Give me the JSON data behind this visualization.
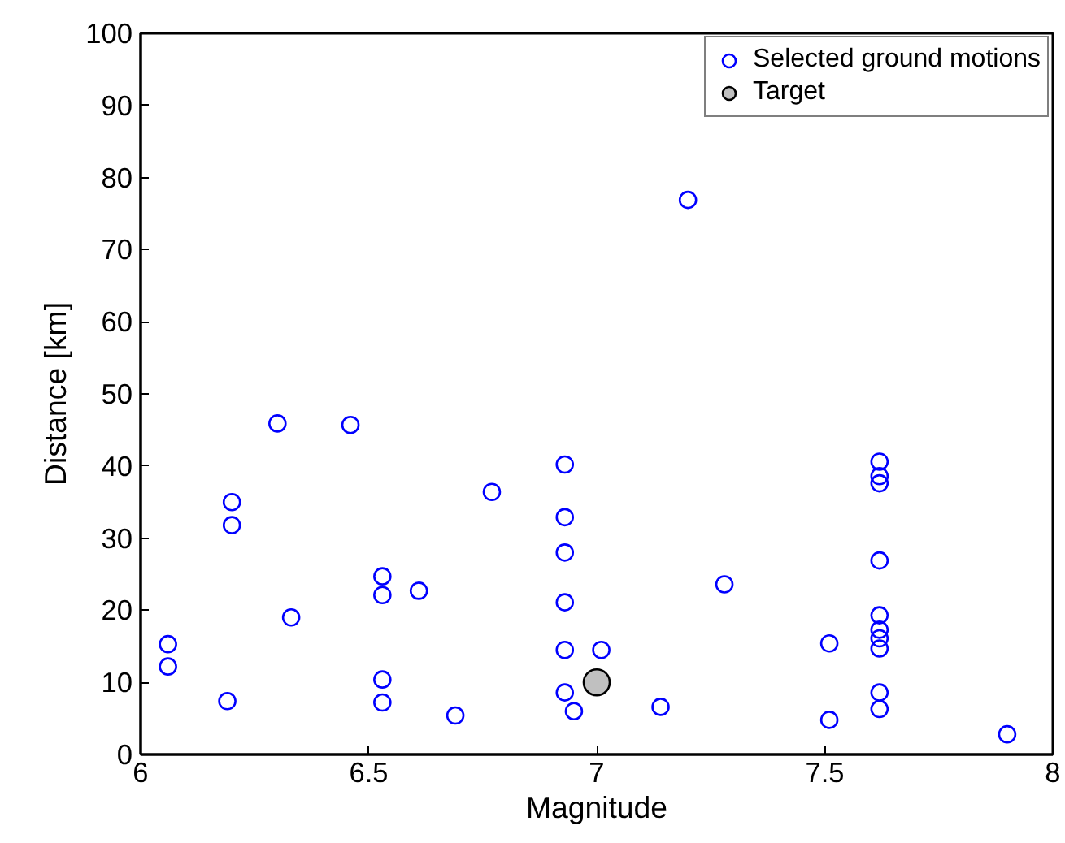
{
  "chart_data": {
    "type": "scatter",
    "xlabel": "Magnitude",
    "ylabel": "Distance [km]",
    "xlim": [
      6,
      8
    ],
    "ylim": [
      0,
      100
    ],
    "xticks": [
      6,
      6.5,
      7,
      7.5,
      8
    ],
    "yticks": [
      0,
      10,
      20,
      30,
      40,
      50,
      60,
      70,
      80,
      90,
      100
    ],
    "grid": false,
    "legend": "top right",
    "marker": "circle",
    "series": [
      {
        "name": "Selected ground motions",
        "color": "#0000ff",
        "x": [
          6.06,
          6.06,
          6.19,
          6.2,
          6.2,
          6.3,
          6.33,
          6.46,
          6.53,
          6.53,
          6.53,
          6.53,
          6.61,
          6.69,
          6.77,
          6.93,
          6.93,
          6.93,
          6.93,
          6.93,
          6.93,
          6.95,
          7.01,
          7.14,
          7.28,
          7.2,
          7.51,
          7.51,
          7.62,
          7.62,
          7.62,
          7.62,
          7.62,
          7.62,
          7.62,
          7.62,
          7.62,
          7.62,
          7.9
        ],
        "values": [
          15.3,
          12.2,
          7.4,
          35.0,
          31.8,
          45.9,
          19.0,
          45.7,
          24.7,
          22.1,
          10.4,
          7.2,
          22.7,
          5.4,
          36.4,
          40.2,
          32.9,
          28.0,
          21.1,
          14.5,
          8.6,
          6.0,
          14.5,
          6.6,
          23.6,
          76.9,
          15.4,
          4.8,
          40.6,
          38.6,
          37.6,
          26.9,
          19.3,
          17.3,
          16.1,
          14.7,
          8.6,
          6.3,
          2.8
        ]
      },
      {
        "name": "Target",
        "color": "#c0c0c0",
        "x": [
          7.0
        ],
        "values": [
          10
        ]
      }
    ]
  }
}
